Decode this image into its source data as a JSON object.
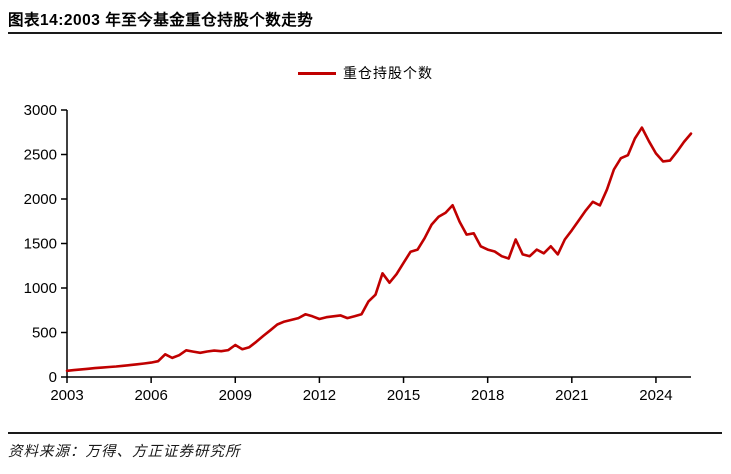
{
  "header": {
    "title": "图表14:2003 年至今基金重仓持股个数走势"
  },
  "legend": {
    "label": "重仓持股个数"
  },
  "footer": {
    "source": "资料来源：万得、方正证券研究所"
  },
  "colors": {
    "line": "#c00000",
    "axis": "#000000",
    "tick_text": "#000000",
    "divider": "#1a1a1a",
    "background": "#ffffff"
  },
  "chart_data": {
    "type": "line",
    "title": "图表14:2003 年至今基金重仓持股个数走势",
    "series_name": "重仓持股个数",
    "x_frequency": "quarterly",
    "x_start_year": 2003,
    "x_tick_years": [
      2003,
      2006,
      2009,
      2012,
      2015,
      2018,
      2021,
      2024
    ],
    "y_ticks": [
      0,
      500,
      1000,
      1500,
      2000,
      2500,
      3000
    ],
    "ylim": [
      0,
      3000
    ],
    "grid": false,
    "legend_position": "top-center",
    "values": [
      70,
      78,
      85,
      92,
      100,
      106,
      112,
      118,
      126,
      134,
      143,
      152,
      162,
      178,
      255,
      215,
      245,
      300,
      285,
      272,
      287,
      297,
      290,
      302,
      360,
      312,
      335,
      395,
      462,
      525,
      590,
      622,
      642,
      662,
      705,
      682,
      652,
      672,
      682,
      692,
      662,
      682,
      705,
      850,
      925,
      1165,
      1060,
      1155,
      1282,
      1408,
      1432,
      1560,
      1712,
      1800,
      1845,
      1930,
      1745,
      1600,
      1615,
      1468,
      1432,
      1410,
      1357,
      1332,
      1545,
      1378,
      1357,
      1432,
      1390,
      1468,
      1378,
      1545,
      1648,
      1760,
      1872,
      1968,
      1928,
      2105,
      2332,
      2458,
      2492,
      2680,
      2802,
      2650,
      2512,
      2422,
      2432,
      2532,
      2642,
      2735
    ]
  }
}
